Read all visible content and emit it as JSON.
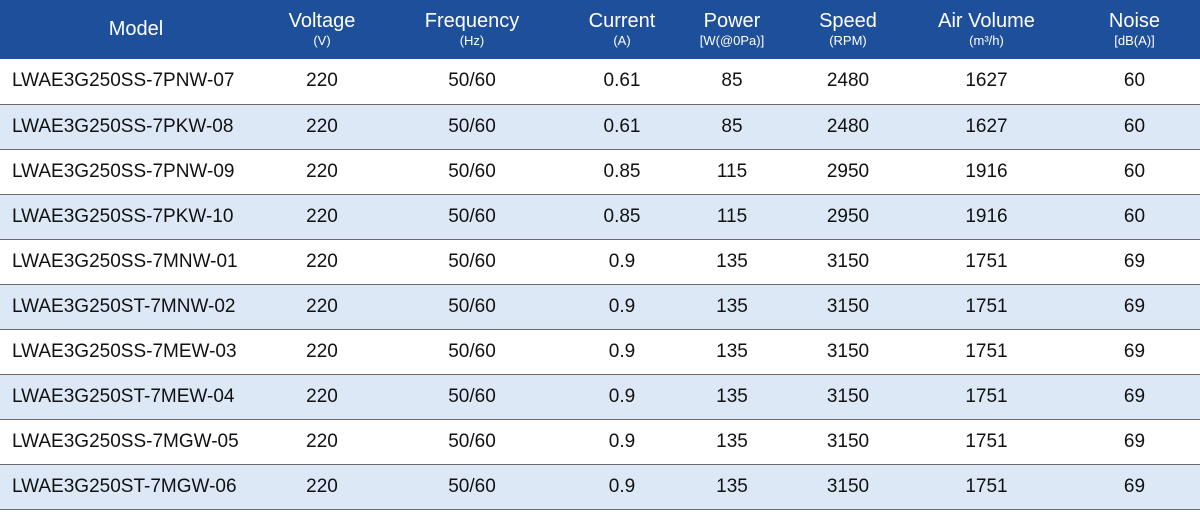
{
  "table": {
    "headers": [
      {
        "label": "Model",
        "unit": ""
      },
      {
        "label": "Voltage",
        "unit": "(V)"
      },
      {
        "label": "Frequency",
        "unit": "(Hz)"
      },
      {
        "label": "Current",
        "unit": "(A)"
      },
      {
        "label": "Power",
        "unit": "[W(@0Pa)]"
      },
      {
        "label": "Speed",
        "unit": "(RPM)"
      },
      {
        "label": "Air Volume",
        "unit": "(m³/h)"
      },
      {
        "label": "Noise",
        "unit": "[dB(A)]"
      }
    ],
    "rows": [
      [
        "LWAE3G250SS-7PNW-07",
        "220",
        "50/60",
        "0.61",
        "85",
        "2480",
        "1627",
        "60"
      ],
      [
        "LWAE3G250SS-7PKW-08",
        "220",
        "50/60",
        "0.61",
        "85",
        "2480",
        "1627",
        "60"
      ],
      [
        "LWAE3G250SS-7PNW-09",
        "220",
        "50/60",
        "0.85",
        "115",
        "2950",
        "1916",
        "60"
      ],
      [
        "LWAE3G250SS-7PKW-10",
        "220",
        "50/60",
        "0.85",
        "115",
        "2950",
        "1916",
        "60"
      ],
      [
        "LWAE3G250SS-7MNW-01",
        "220",
        "50/60",
        "0.9",
        "135",
        "3150",
        "1751",
        "69"
      ],
      [
        "LWAE3G250ST-7MNW-02",
        "220",
        "50/60",
        "0.9",
        "135",
        "3150",
        "1751",
        "69"
      ],
      [
        "LWAE3G250SS-7MEW-03",
        "220",
        "50/60",
        "0.9",
        "135",
        "3150",
        "1751",
        "69"
      ],
      [
        "LWAE3G250ST-7MEW-04",
        "220",
        "50/60",
        "0.9",
        "135",
        "3150",
        "1751",
        "69"
      ],
      [
        "LWAE3G250SS-7MGW-05",
        "220",
        "50/60",
        "0.9",
        "135",
        "3150",
        "1751",
        "69"
      ],
      [
        "LWAE3G250ST-7MGW-06",
        "220",
        "50/60",
        "0.9",
        "135",
        "3150",
        "1751",
        "69"
      ]
    ]
  },
  "colors": {
    "header_bg": "#1d4f9b",
    "header_text": "#ffffff",
    "alt_row_bg": "#dde8f6",
    "row_border": "#6b6b6b"
  }
}
